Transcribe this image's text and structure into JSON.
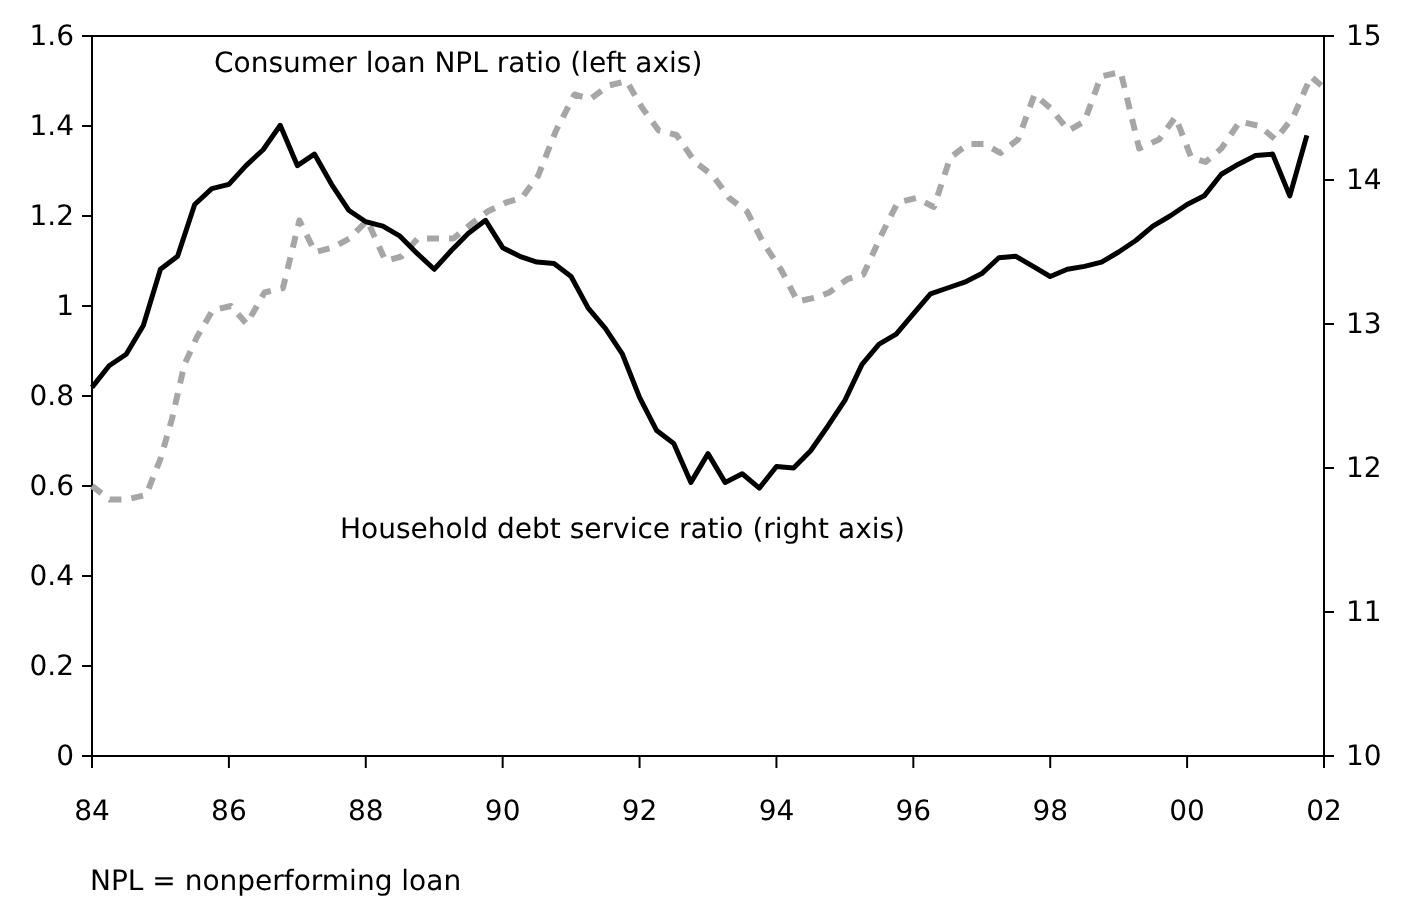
{
  "chart_data": {
    "type": "line",
    "xlim": [
      1984,
      2002
    ],
    "xticks": [
      {
        "value": 1984,
        "label": "84"
      },
      {
        "value": 1986,
        "label": "86"
      },
      {
        "value": 1988,
        "label": "88"
      },
      {
        "value": 1990,
        "label": "90"
      },
      {
        "value": 1992,
        "label": "92"
      },
      {
        "value": 1994,
        "label": "94"
      },
      {
        "value": 1996,
        "label": "96"
      },
      {
        "value": 1998,
        "label": "98"
      },
      {
        "value": 2000,
        "label": "00"
      },
      {
        "value": 2002,
        "label": "02"
      }
    ],
    "ylim": [
      0,
      1.6
    ],
    "yticks": [
      0,
      {
        "value": 0.2,
        "label": "0.2"
      },
      {
        "value": 0.4,
        "label": "0.4"
      },
      {
        "value": 0.6,
        "label": "0.6"
      },
      {
        "value": 0.8,
        "label": "0.8"
      },
      1,
      {
        "value": 1.2,
        "label": "1.2"
      },
      {
        "value": 1.4,
        "label": "1.4"
      },
      {
        "value": 1.6,
        "label": "1.6"
      }
    ],
    "y2lim": [
      10,
      15
    ],
    "y2ticks": [
      10,
      11,
      12,
      13,
      14,
      15
    ],
    "grid": false,
    "legend": false,
    "marker": "none",
    "series": [
      {
        "name": "Consumer loan NPL ratio (left axis)",
        "color": "#a6a6a6",
        "line_style": "dashed",
        "x": [
          1984.0,
          1984.26,
          1984.5,
          1984.79,
          1985.0,
          1985.17,
          1985.35,
          1985.53,
          1985.76,
          1986.03,
          1986.26,
          1986.52,
          1986.79,
          1987.03,
          1987.26,
          1987.52,
          1987.76,
          1988.02,
          1988.29,
          1988.52,
          1988.76,
          1989.02,
          1989.28,
          1989.52,
          1989.78,
          1990.05,
          1990.28,
          1990.52,
          1990.78,
          1991.05,
          1991.28,
          1991.55,
          1991.81,
          1992.04,
          1992.28,
          1992.54,
          1992.81,
          1993.07,
          1993.31,
          1993.57,
          1993.81,
          1994.07,
          1994.31,
          1994.6,
          1994.77,
          1995.04,
          1995.27,
          1995.54,
          1995.77,
          1996.04,
          1996.3,
          1996.54,
          1996.8,
          1997.04,
          1997.27,
          1997.53,
          1997.77,
          1998.0,
          1998.27,
          1998.5,
          1998.74,
          1999.03,
          1999.3,
          1999.59,
          1999.83,
          2000.06,
          2000.27,
          2000.5,
          2000.77,
          2001.06,
          2001.29,
          2001.55,
          2001.81,
          2001.96
        ],
        "values": [
          0.6,
          0.57,
          0.57,
          0.58,
          0.66,
          0.75,
          0.87,
          0.93,
          0.99,
          1.0,
          0.96,
          1.03,
          1.04,
          1.19,
          1.12,
          1.13,
          1.15,
          1.19,
          1.1,
          1.11,
          1.15,
          1.15,
          1.15,
          1.18,
          1.21,
          1.23,
          1.24,
          1.29,
          1.39,
          1.47,
          1.46,
          1.49,
          1.5,
          1.44,
          1.39,
          1.38,
          1.32,
          1.29,
          1.24,
          1.21,
          1.14,
          1.08,
          1.01,
          1.02,
          1.03,
          1.06,
          1.07,
          1.16,
          1.23,
          1.24,
          1.22,
          1.33,
          1.36,
          1.36,
          1.34,
          1.37,
          1.47,
          1.44,
          1.39,
          1.41,
          1.51,
          1.52,
          1.35,
          1.37,
          1.42,
          1.33,
          1.32,
          1.35,
          1.41,
          1.4,
          1.37,
          1.42,
          1.51,
          1.49
        ]
      },
      {
        "name": "Household debt service ratio (right axis)",
        "color": "#000000",
        "line_style": "solid",
        "axis": "y2",
        "x": [
          1984.0,
          1984.25,
          1984.5,
          1984.75,
          1985.0,
          1985.25,
          1985.5,
          1985.75,
          1986.0,
          1986.25,
          1986.5,
          1986.75,
          1987.0,
          1987.25,
          1987.5,
          1987.75,
          1988.0,
          1988.25,
          1988.5,
          1988.75,
          1989.0,
          1989.25,
          1989.5,
          1989.75,
          1990.0,
          1990.25,
          1990.5,
          1990.75,
          1991.0,
          1991.25,
          1991.5,
          1991.75,
          1992.0,
          1992.25,
          1992.5,
          1992.75,
          1993.0,
          1993.25,
          1993.5,
          1993.75,
          1994.0,
          1994.25,
          1994.5,
          1994.75,
          1995.0,
          1995.25,
          1995.5,
          1995.75,
          1996.0,
          1996.25,
          1996.5,
          1996.75,
          1997.0,
          1997.25,
          1997.5,
          1997.75,
          1998.0,
          1998.25,
          1998.5,
          1998.75,
          1999.0,
          1999.25,
          1999.5,
          1999.75,
          2000.0,
          2000.25,
          2000.5,
          2000.75,
          2001.0,
          2001.25,
          2001.5,
          2001.75
        ],
        "values": [
          12.56,
          12.71,
          12.79,
          12.99,
          13.38,
          13.47,
          13.83,
          13.94,
          13.97,
          14.1,
          14.21,
          14.38,
          14.1,
          14.18,
          13.97,
          13.79,
          13.71,
          13.68,
          13.61,
          13.49,
          13.38,
          13.51,
          13.63,
          13.72,
          13.53,
          13.47,
          13.43,
          13.42,
          13.33,
          13.11,
          12.97,
          12.79,
          12.49,
          12.26,
          12.17,
          11.9,
          12.1,
          11.9,
          11.96,
          11.86,
          12.01,
          12.0,
          12.12,
          12.29,
          12.47,
          12.72,
          12.86,
          12.93,
          13.07,
          13.21,
          13.25,
          13.29,
          13.35,
          13.46,
          13.47,
          13.4,
          13.33,
          13.38,
          13.4,
          13.43,
          13.5,
          13.58,
          13.68,
          13.75,
          13.83,
          13.89,
          14.04,
          14.11,
          14.17,
          14.18,
          13.89,
          14.31
        ]
      }
    ],
    "annotations": [
      "NPL = nonperforming loan"
    ]
  }
}
